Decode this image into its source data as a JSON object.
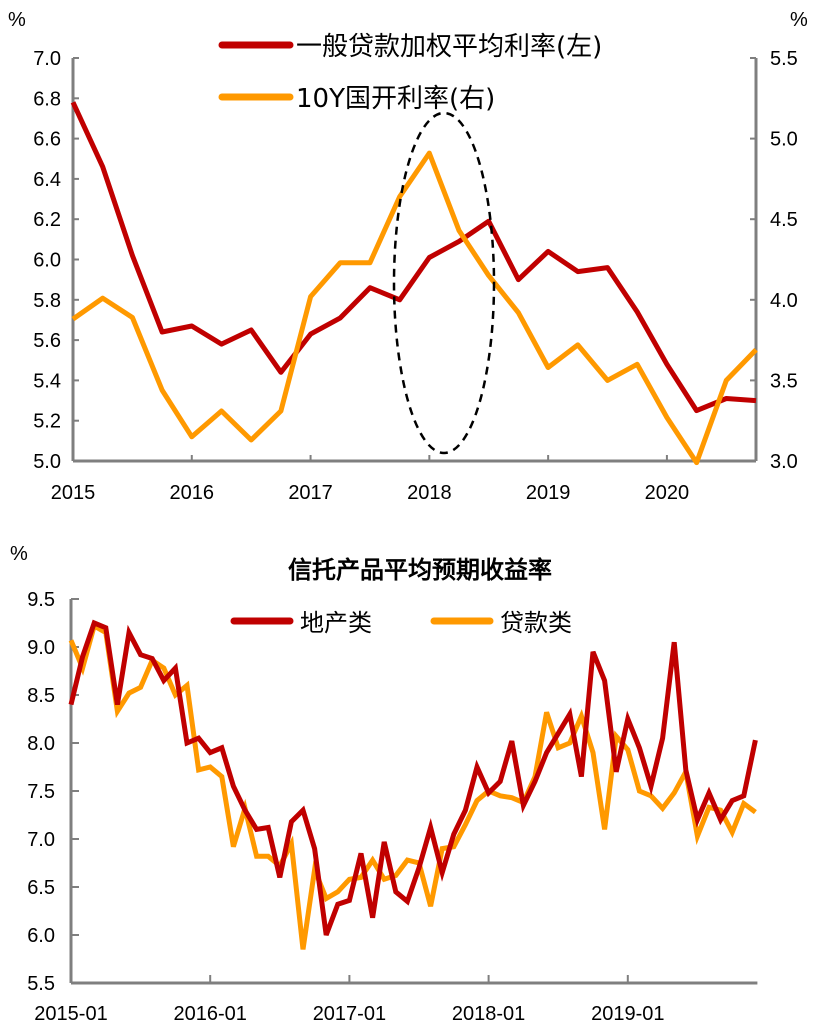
{
  "chart_data": [
    {
      "type": "line",
      "title": "",
      "left_unit": "%",
      "right_unit": "%",
      "ylim_left": [
        5.0,
        7.0
      ],
      "ylim_right": [
        3.0,
        5.5
      ],
      "left_ticks": [
        "5.0",
        "5.2",
        "5.4",
        "5.6",
        "5.8",
        "6.0",
        "6.2",
        "6.4",
        "6.6",
        "6.8",
        "7.0"
      ],
      "right_ticks": [
        "3.0",
        "3.5",
        "4.0",
        "4.5",
        "5.0",
        "5.5"
      ],
      "x_ticks": [
        "2015",
        "2016",
        "2017",
        "2018",
        "2019",
        "2020"
      ],
      "x_frequency": "quarterly",
      "grid": false,
      "legend_position": "top",
      "colors": {
        "series1": "#c00000",
        "series2": "#ff9900"
      },
      "annotation": "dashed-ellipse-around-2018",
      "series": [
        {
          "name": "一般贷款加权平均利率(左)",
          "axis": "left",
          "values": [
            6.78,
            6.46,
            6.02,
            5.64,
            5.67,
            5.58,
            5.65,
            5.44,
            5.63,
            5.71,
            5.86,
            5.8,
            6.01,
            6.09,
            6.19,
            5.9,
            6.04,
            5.94,
            5.96,
            5.74,
            5.48,
            5.25,
            5.31,
            5.3
          ]
        },
        {
          "name": "10Y国开利率(右)",
          "axis": "right",
          "values": [
            3.88,
            4.01,
            3.89,
            3.44,
            3.15,
            3.31,
            3.13,
            3.31,
            4.02,
            4.23,
            4.23,
            4.64,
            4.91,
            4.43,
            4.15,
            3.92,
            3.58,
            3.72,
            3.5,
            3.6,
            3.27,
            2.99,
            3.5,
            3.69
          ]
        }
      ]
    },
    {
      "type": "line",
      "title": "信托产品平均预期收益率",
      "unit": "%",
      "ylim": [
        5.5,
        9.5
      ],
      "y_ticks": [
        "5.5",
        "6.0",
        "6.5",
        "7.0",
        "7.5",
        "8.0",
        "8.5",
        "9.0",
        "9.5"
      ],
      "x_ticks": [
        "2015-01",
        "2016-01",
        "2017-01",
        "2018-01",
        "2019-01"
      ],
      "x_frequency": "monthly",
      "grid": false,
      "legend_position": "top",
      "colors": {
        "series1": "#c00000",
        "series2": "#ff9900"
      },
      "series": [
        {
          "name": "地产类",
          "values": [
            8.4,
            8.9,
            9.25,
            9.2,
            8.4,
            9.15,
            8.92,
            8.88,
            8.65,
            8.78,
            8.0,
            8.05,
            7.9,
            7.95,
            7.55,
            7.3,
            7.1,
            7.12,
            6.6,
            7.18,
            7.3,
            6.9,
            6.0,
            6.32,
            6.36,
            6.85,
            6.18,
            6.97,
            6.45,
            6.35,
            6.7,
            7.12,
            6.65,
            7.05,
            7.3,
            7.75,
            7.48,
            7.6,
            8.02,
            7.35,
            7.6,
            7.9,
            8.1,
            8.3,
            7.65,
            8.95,
            8.65,
            7.7,
            8.25,
            7.95,
            7.55,
            8.05,
            9.05,
            7.72,
            7.2,
            7.48,
            7.2,
            7.4,
            7.45,
            8.03
          ]
        },
        {
          "name": "贷款类",
          "values": [
            9.07,
            8.78,
            9.22,
            9.15,
            8.33,
            8.52,
            8.58,
            8.86,
            8.78,
            8.5,
            8.6,
            7.72,
            7.75,
            7.65,
            6.92,
            7.32,
            6.82,
            6.82,
            6.72,
            6.95,
            5.85,
            6.68,
            6.38,
            6.45,
            6.58,
            6.6,
            6.78,
            6.58,
            6.62,
            6.78,
            6.75,
            6.3,
            6.9,
            6.92,
            7.15,
            7.4,
            7.5,
            7.45,
            7.43,
            7.38,
            7.65,
            8.32,
            7.95,
            8.0,
            8.28,
            7.9,
            7.1,
            8.07,
            7.93,
            7.5,
            7.45,
            7.32,
            7.48,
            7.7,
            7.03,
            7.33,
            7.3,
            7.07,
            7.37,
            7.28
          ]
        }
      ]
    }
  ]
}
